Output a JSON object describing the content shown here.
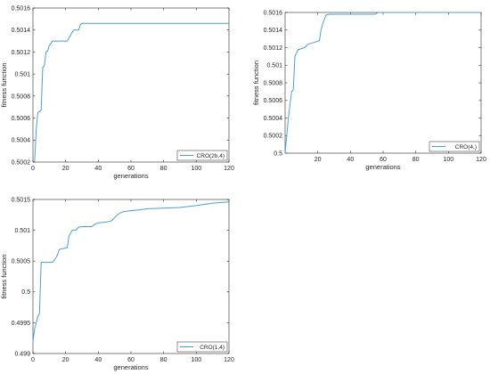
{
  "chart_data": [
    {
      "type": "line",
      "xlabel": "generations",
      "ylabel": "fitness function",
      "xlim": [
        0,
        120
      ],
      "ylim": [
        0.5002,
        0.5016
      ],
      "x_ticks": [
        0,
        20,
        40,
        60,
        80,
        100,
        120
      ],
      "y_ticks": [
        0.5002,
        0.5004,
        0.5006,
        0.5008,
        0.501,
        0.5012,
        0.5014,
        0.5016
      ],
      "y_tick_labels": [
        "0.5002",
        "0.5004",
        "0.5006",
        "0.5008",
        "0.501",
        "0.5012",
        "0.5014",
        "0.5016"
      ],
      "grid": false,
      "legend_position": "bottom-right",
      "series": [
        {
          "name": "CRO(2b,4)",
          "color": "#4a9fd6",
          "x": [
            1,
            2,
            3,
            5,
            6,
            7,
            8,
            9,
            10,
            11,
            12,
            14,
            17,
            21,
            24,
            25,
            27,
            28,
            29,
            30,
            120
          ],
          "y": [
            0.5002,
            0.5005,
            0.50065,
            0.50067,
            0.50106,
            0.50108,
            0.5012,
            0.50121,
            0.50126,
            0.50128,
            0.5013,
            0.5013,
            0.5013,
            0.5013,
            0.50138,
            0.5014,
            0.5014,
            0.5014,
            0.50145,
            0.50146,
            0.50146
          ]
        }
      ]
    },
    {
      "type": "line",
      "xlabel": "generations",
      "ylabel": "fitness function",
      "xlim": [
        0,
        120
      ],
      "ylim": [
        0.5,
        0.5016
      ],
      "x_ticks": [
        20,
        40,
        60,
        80,
        100,
        120
      ],
      "y_ticks": [
        0.5,
        0.5002,
        0.5004,
        0.5006,
        0.5008,
        0.501,
        0.5012,
        0.5014,
        0.5016
      ],
      "y_tick_labels": [
        "0.5",
        "0.5002",
        "0.5004",
        "0.5006",
        "0.5008",
        "0.501",
        "0.5012",
        "0.5014",
        "0.5016"
      ],
      "grid": false,
      "legend_position": "bottom-right",
      "series": [
        {
          "name": "CRO(4,)",
          "color": "#4a9fd6",
          "x": [
            0,
            1,
            2,
            3,
            4,
            5,
            6,
            7,
            8,
            9,
            10,
            12,
            14,
            16,
            18,
            21,
            22,
            23,
            24,
            25,
            27,
            28,
            55,
            56,
            57,
            120
          ],
          "y": [
            0.5,
            0.5002,
            0.5004,
            0.50055,
            0.5007,
            0.50072,
            0.5011,
            0.50114,
            0.50118,
            0.50118,
            0.50119,
            0.5012,
            0.50124,
            0.50125,
            0.50126,
            0.50128,
            0.5014,
            0.50147,
            0.50152,
            0.50157,
            0.50158,
            0.50158,
            0.50158,
            0.50159,
            0.5016,
            0.5016
          ]
        }
      ]
    },
    {
      "type": "line",
      "xlabel": "generations",
      "ylabel": "fitness function",
      "xlim": [
        0,
        120
      ],
      "ylim": [
        0.499,
        0.5015
      ],
      "x_ticks": [
        0,
        20,
        40,
        60,
        80,
        100,
        120
      ],
      "y_ticks": [
        0.499,
        0.4995,
        0.5,
        0.5005,
        0.501,
        0.5015
      ],
      "y_tick_labels": [
        "0.499",
        "0.4995",
        "0.5",
        "0.5005",
        "0.501",
        "0.5015"
      ],
      "grid": false,
      "legend_position": "bottom-right",
      "series": [
        {
          "name": "CRO(1,4)",
          "color": "#4a9fd6",
          "x": [
            0,
            1,
            2,
            3,
            4,
            5,
            6,
            7,
            8,
            10,
            12,
            14,
            15,
            16,
            17,
            18,
            21,
            22,
            24,
            26,
            28,
            30,
            36,
            38,
            40,
            44,
            48,
            52,
            55,
            60,
            65,
            70,
            80,
            90,
            100,
            105,
            110,
            115,
            120
          ],
          "y": [
            0.4992,
            0.4994,
            0.4995,
            0.4996,
            0.49965,
            0.50048,
            0.50048,
            0.50048,
            0.50048,
            0.50048,
            0.50048,
            0.50055,
            0.5006,
            0.50068,
            0.5007,
            0.5007,
            0.50072,
            0.5009,
            0.501,
            0.501,
            0.50105,
            0.50106,
            0.50106,
            0.5011,
            0.50112,
            0.50113,
            0.50115,
            0.50126,
            0.5013,
            0.50132,
            0.50133,
            0.50135,
            0.50136,
            0.50137,
            0.5014,
            0.50142,
            0.50144,
            0.50145,
            0.50146
          ]
        }
      ]
    }
  ]
}
